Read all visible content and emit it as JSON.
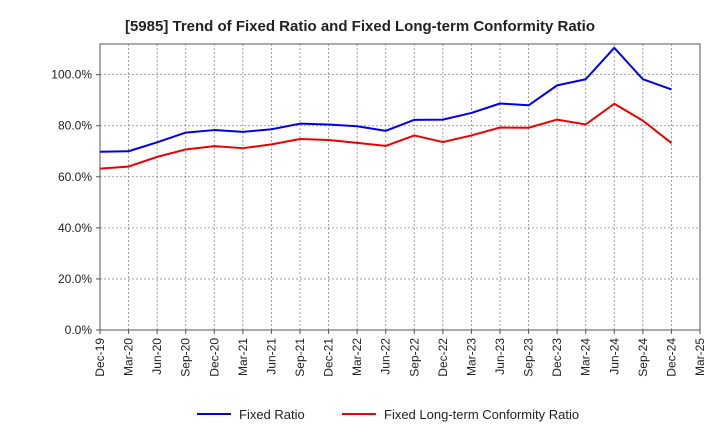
{
  "chart_data": {
    "type": "line",
    "title": "[5985]  Trend of Fixed Ratio and Fixed Long-term Conformity Ratio",
    "xlabel": "",
    "ylabel": "",
    "ylim": [
      0,
      112
    ],
    "yticks": [
      0,
      20,
      40,
      60,
      80,
      100
    ],
    "ytick_labels": [
      "0.0%",
      "20.0%",
      "40.0%",
      "60.0%",
      "80.0%",
      "100.0%"
    ],
    "x_tick_labels": [
      "Dec-19",
      "Mar-20",
      "Jun-20",
      "Sep-20",
      "Dec-20",
      "Mar-21",
      "Jun-21",
      "Sep-21",
      "Dec-21",
      "Mar-22",
      "Jun-22",
      "Sep-22",
      "Dec-22",
      "Mar-23",
      "Jun-23",
      "Sep-23",
      "Dec-23",
      "Mar-24",
      "Jun-24",
      "Sep-24",
      "Dec-24",
      "Mar-25"
    ],
    "x": [
      "Dec-19",
      "Mar-20",
      "Jun-20",
      "Sep-20",
      "Dec-20",
      "Mar-21",
      "Jun-21",
      "Sep-21",
      "Dec-21",
      "Mar-22",
      "Jun-22",
      "Sep-22",
      "Dec-22",
      "Mar-23",
      "Jun-23",
      "Sep-23",
      "Dec-23",
      "Mar-24",
      "Jun-24",
      "Sep-24",
      "Dec-24"
    ],
    "grid": true,
    "legend": "bottom",
    "series": [
      {
        "name": "Fixed Ratio",
        "color": "#0000ee",
        "values": [
          69.8,
          70.0,
          73.5,
          77.3,
          78.3,
          77.6,
          78.6,
          80.8,
          80.5,
          79.8,
          78.0,
          82.3,
          82.4,
          85.0,
          88.7,
          88.0,
          95.8,
          98.2,
          110.5,
          98.2,
          94.2
        ]
      },
      {
        "name": "Fixed Long-term Conformity Ratio",
        "color": "#ee0000",
        "values": [
          63.2,
          64.0,
          67.8,
          70.7,
          72.0,
          71.2,
          72.7,
          74.8,
          74.4,
          73.3,
          72.1,
          76.2,
          73.6,
          76.2,
          79.3,
          79.2,
          82.4,
          80.5,
          88.6,
          82.0,
          73.2
        ]
      }
    ]
  }
}
